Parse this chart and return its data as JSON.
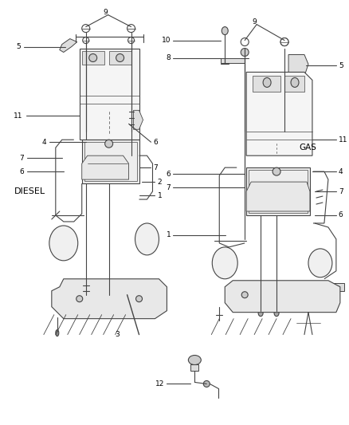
{
  "background_color": "#ffffff",
  "line_color": "#444444",
  "text_color": "#000000",
  "figsize": [
    4.38,
    5.33
  ],
  "dpi": 100,
  "diesel_label": "DIESEL",
  "gas_label": "GAS"
}
